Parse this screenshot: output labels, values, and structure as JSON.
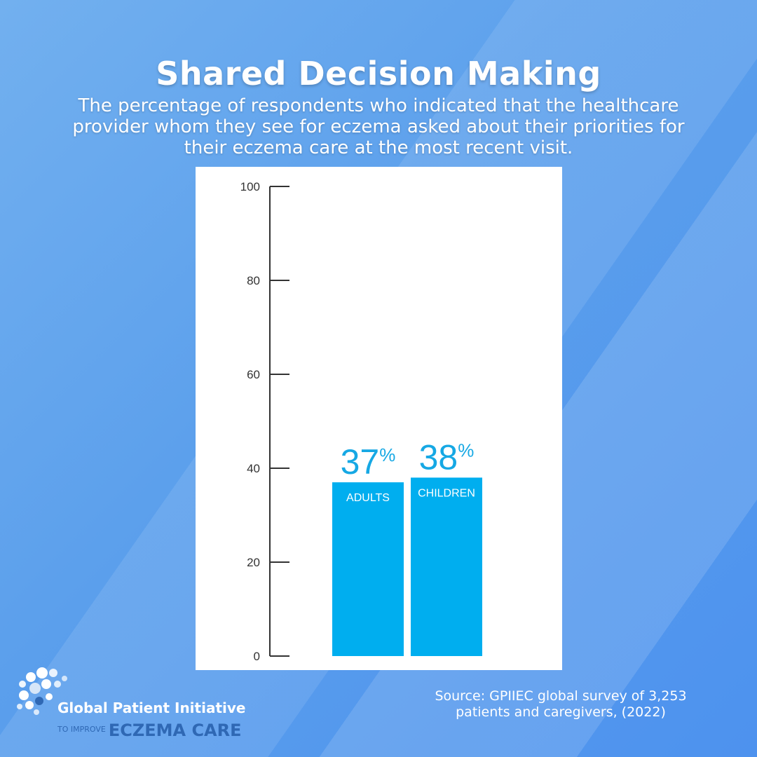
{
  "header": {
    "title": "Shared Decision Making",
    "subtitle": "The percentage of respondents who indicated that the healthcare provider whom they see for eczema asked about their priorities for their eczema care at the most recent visit."
  },
  "chart_data": {
    "type": "bar",
    "title": "",
    "xlabel": "",
    "ylabel": "",
    "ylim": [
      0,
      100
    ],
    "yticks": [
      0,
      20,
      40,
      60,
      80,
      100
    ],
    "categories": [
      "ADULTS",
      "CHILDREN"
    ],
    "values": [
      37,
      38
    ],
    "value_labels": [
      "37",
      "38"
    ],
    "value_suffix": "%",
    "bar_color": "#00aeef",
    "label_color": "#16a8e4",
    "grid": false,
    "legend": "none"
  },
  "source": {
    "text": "Source: GPIIEC global survey of 3,253 patients and caregivers, (2022)"
  },
  "logo": {
    "line1": "Global Patient Initiative",
    "line2_prefix": "TO IMPROVE",
    "line2_main": "ECZEMA CARE",
    "icon": "globe-dots-icon"
  },
  "colors": {
    "background": "#5b9fec",
    "text": "#ffffff",
    "logo_dark": "#2f68b4"
  }
}
